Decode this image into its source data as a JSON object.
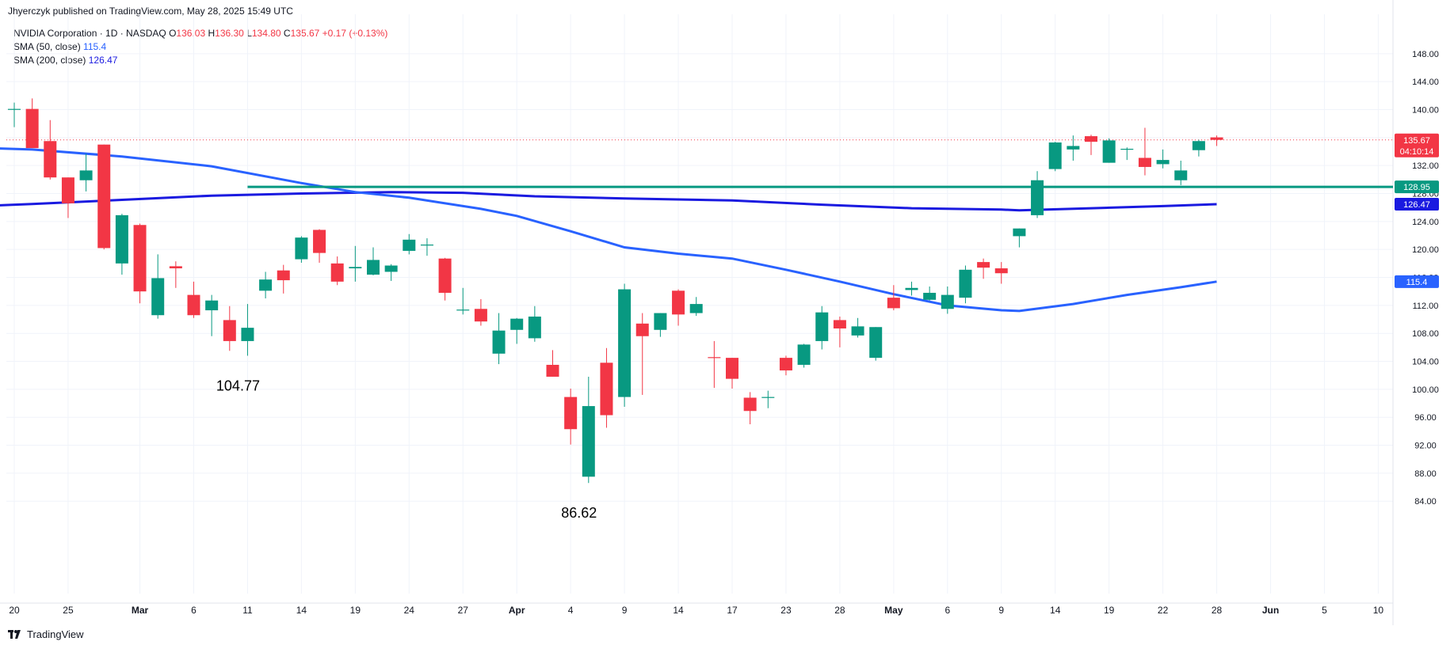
{
  "header": {
    "publisher": "Jhyerczyk published on TradingView.com, May 28, 2025 15:49 UTC"
  },
  "legend": {
    "symbol": "NVIDIA Corporation · 1D · NASDAQ",
    "o_label": "O",
    "o_value": "136.03",
    "h_label": "H",
    "h_value": "136.30",
    "l_label": "L",
    "l_value": "134.80",
    "c_label": "C",
    "c_value": "135.67",
    "change": "+0.17 (+0.13%)",
    "sma50_label": "SMA (50, close)",
    "sma50_value": "115.4",
    "sma200_label": "SMA (200, close)",
    "sma200_value": "126.47"
  },
  "footer": {
    "brand": "TradingView"
  },
  "colors": {
    "up": "#089981",
    "down": "#f23645",
    "sma50": "#2962ff",
    "sma200": "#1a1ae0",
    "hline": "#089981",
    "grid": "#f0f3fa",
    "axis_text": "#131722"
  },
  "chart_data": {
    "type": "candlestick",
    "ylim": [
      82,
      148
    ],
    "y_ticks": [
      "84.00",
      "88.00",
      "92.00",
      "96.00",
      "100.00",
      "104.00",
      "108.00",
      "112.00",
      "116.00",
      "120.00",
      "124.00",
      "128.00",
      "132.00",
      "136.00",
      "140.00",
      "144.00",
      "148.00"
    ],
    "x_ticks": [
      {
        "label": "20",
        "date": "2025-02-20"
      },
      {
        "label": "25",
        "date": "2025-02-25"
      },
      {
        "label": "Mar",
        "date": "2025-03-03"
      },
      {
        "label": "6",
        "date": "2025-03-06"
      },
      {
        "label": "11",
        "date": "2025-03-11"
      },
      {
        "label": "14",
        "date": "2025-03-14"
      },
      {
        "label": "19",
        "date": "2025-03-19"
      },
      {
        "label": "24",
        "date": "2025-03-24"
      },
      {
        "label": "27",
        "date": "2025-03-27"
      },
      {
        "label": "Apr",
        "date": "2025-04-01"
      },
      {
        "label": "4",
        "date": "2025-04-04"
      },
      {
        "label": "9",
        "date": "2025-04-09"
      },
      {
        "label": "14",
        "date": "2025-04-14"
      },
      {
        "label": "17",
        "date": "2025-04-17"
      },
      {
        "label": "23",
        "date": "2025-04-23"
      },
      {
        "label": "28",
        "date": "2025-04-28"
      },
      {
        "label": "May",
        "date": "2025-05-01"
      },
      {
        "label": "6",
        "date": "2025-05-06"
      },
      {
        "label": "9",
        "date": "2025-05-09"
      },
      {
        "label": "14",
        "date": "2025-05-14"
      },
      {
        "label": "19",
        "date": "2025-05-19"
      },
      {
        "label": "22",
        "date": "2025-05-22"
      },
      {
        "label": "28",
        "date": "2025-05-28"
      },
      {
        "label": "Jun",
        "date": "2025-06-02"
      },
      {
        "label": "5",
        "date": "2025-06-05"
      },
      {
        "label": "10",
        "date": "2025-06-10"
      }
    ],
    "candles": [
      {
        "date": "2025-02-20",
        "o": 140.0,
        "h": 141.0,
        "l": 137.5,
        "c": 140.1
      },
      {
        "date": "2025-02-21",
        "o": 140.1,
        "h": 141.6,
        "l": 134.8,
        "c": 134.5
      },
      {
        "date": "2025-02-24",
        "o": 135.5,
        "h": 138.5,
        "l": 130.0,
        "c": 130.3
      },
      {
        "date": "2025-02-25",
        "o": 130.3,
        "h": 130.3,
        "l": 124.5,
        "c": 126.6
      },
      {
        "date": "2025-02-26",
        "o": 129.9,
        "h": 133.7,
        "l": 128.3,
        "c": 131.3
      },
      {
        "date": "2025-02-27",
        "o": 135.0,
        "h": 135.0,
        "l": 120.0,
        "c": 120.2
      },
      {
        "date": "2025-02-28",
        "o": 118.0,
        "h": 125.1,
        "l": 116.4,
        "c": 124.9
      },
      {
        "date": "2025-03-03",
        "o": 123.5,
        "h": 123.7,
        "l": 112.3,
        "c": 114.0
      },
      {
        "date": "2025-03-04",
        "o": 110.6,
        "h": 119.3,
        "l": 110.1,
        "c": 115.9
      },
      {
        "date": "2025-03-05",
        "o": 117.6,
        "h": 118.3,
        "l": 114.5,
        "c": 117.3
      },
      {
        "date": "2025-03-06",
        "o": 113.5,
        "h": 115.4,
        "l": 110.2,
        "c": 110.6
      },
      {
        "date": "2025-03-07",
        "o": 111.3,
        "h": 113.5,
        "l": 107.6,
        "c": 112.7
      },
      {
        "date": "2025-03-10",
        "o": 109.9,
        "h": 111.9,
        "l": 105.5,
        "c": 106.9
      },
      {
        "date": "2025-03-11",
        "o": 106.9,
        "h": 112.2,
        "l": 104.8,
        "c": 108.8
      },
      {
        "date": "2025-03-12",
        "o": 114.1,
        "h": 116.8,
        "l": 113.0,
        "c": 115.7
      },
      {
        "date": "2025-03-13",
        "o": 117.0,
        "h": 117.8,
        "l": 113.7,
        "c": 115.6
      },
      {
        "date": "2025-03-14",
        "o": 118.6,
        "h": 121.9,
        "l": 118.1,
        "c": 121.7
      },
      {
        "date": "2025-03-17",
        "o": 122.8,
        "h": 122.9,
        "l": 118.1,
        "c": 119.5
      },
      {
        "date": "2025-03-18",
        "o": 118.0,
        "h": 119.0,
        "l": 114.9,
        "c": 115.4
      },
      {
        "date": "2025-03-19",
        "o": 117.3,
        "h": 120.5,
        "l": 115.4,
        "c": 117.5
      },
      {
        "date": "2025-03-20",
        "o": 116.4,
        "h": 120.3,
        "l": 116.3,
        "c": 118.5
      },
      {
        "date": "2025-03-21",
        "o": 116.8,
        "h": 117.9,
        "l": 115.5,
        "c": 117.7
      },
      {
        "date": "2025-03-24",
        "o": 119.8,
        "h": 122.2,
        "l": 119.3,
        "c": 121.4
      },
      {
        "date": "2025-03-25",
        "o": 120.6,
        "h": 121.6,
        "l": 119.1,
        "c": 120.7
      },
      {
        "date": "2025-03-26",
        "o": 118.7,
        "h": 118.8,
        "l": 112.7,
        "c": 113.8
      },
      {
        "date": "2025-03-27",
        "o": 111.3,
        "h": 114.5,
        "l": 110.7,
        "c": 111.4
      },
      {
        "date": "2025-03-28",
        "o": 111.5,
        "h": 112.9,
        "l": 109.1,
        "c": 109.7
      },
      {
        "date": "2025-03-31",
        "o": 105.1,
        "h": 110.9,
        "l": 103.6,
        "c": 108.4
      },
      {
        "date": "2025-04-01",
        "o": 108.5,
        "h": 110.2,
        "l": 106.5,
        "c": 110.1
      },
      {
        "date": "2025-04-02",
        "o": 107.3,
        "h": 111.9,
        "l": 106.8,
        "c": 110.4
      },
      {
        "date": "2025-04-03",
        "o": 103.5,
        "h": 105.6,
        "l": 101.8,
        "c": 101.8
      },
      {
        "date": "2025-04-04",
        "o": 98.9,
        "h": 100.1,
        "l": 92.1,
        "c": 94.3
      },
      {
        "date": "2025-04-07",
        "o": 87.5,
        "h": 101.8,
        "l": 86.6,
        "c": 97.6
      },
      {
        "date": "2025-04-08",
        "o": 103.8,
        "h": 105.9,
        "l": 94.5,
        "c": 96.3
      },
      {
        "date": "2025-04-09",
        "o": 98.9,
        "h": 115.1,
        "l": 97.5,
        "c": 114.3
      },
      {
        "date": "2025-04-10",
        "o": 109.4,
        "h": 110.9,
        "l": 99.2,
        "c": 107.6
      },
      {
        "date": "2025-04-11",
        "o": 108.5,
        "h": 110.9,
        "l": 107.5,
        "c": 110.9
      },
      {
        "date": "2025-04-14",
        "o": 114.1,
        "h": 114.3,
        "l": 109.1,
        "c": 110.7
      },
      {
        "date": "2025-04-15",
        "o": 110.9,
        "h": 113.2,
        "l": 110.5,
        "c": 112.2
      },
      {
        "date": "2025-04-16",
        "o": 104.6,
        "h": 106.9,
        "l": 100.2,
        "c": 104.5
      },
      {
        "date": "2025-04-17",
        "o": 104.5,
        "h": 104.5,
        "l": 100.1,
        "c": 101.5
      },
      {
        "date": "2025-04-21",
        "o": 98.8,
        "h": 99.6,
        "l": 95.0,
        "c": 96.9
      },
      {
        "date": "2025-04-22",
        "o": 98.8,
        "h": 99.8,
        "l": 97.3,
        "c": 98.9
      },
      {
        "date": "2025-04-23",
        "o": 104.5,
        "h": 104.8,
        "l": 102.0,
        "c": 102.7
      },
      {
        "date": "2025-04-24",
        "o": 103.5,
        "h": 106.5,
        "l": 103.1,
        "c": 106.4
      },
      {
        "date": "2025-04-25",
        "o": 106.9,
        "h": 111.9,
        "l": 105.7,
        "c": 111.0
      },
      {
        "date": "2025-04-28",
        "o": 109.9,
        "h": 110.4,
        "l": 106.0,
        "c": 108.7
      },
      {
        "date": "2025-04-29",
        "o": 107.7,
        "h": 110.2,
        "l": 107.4,
        "c": 109.0
      },
      {
        "date": "2025-04-30",
        "o": 104.5,
        "h": 108.9,
        "l": 104.1,
        "c": 108.9
      },
      {
        "date": "2025-05-01",
        "o": 113.1,
        "h": 114.9,
        "l": 111.3,
        "c": 111.6
      },
      {
        "date": "2025-05-02",
        "o": 114.2,
        "h": 115.4,
        "l": 113.4,
        "c": 114.5
      },
      {
        "date": "2025-05-05",
        "o": 112.8,
        "h": 114.7,
        "l": 112.7,
        "c": 113.8
      },
      {
        "date": "2025-05-06",
        "o": 111.5,
        "h": 114.7,
        "l": 110.8,
        "c": 113.5
      },
      {
        "date": "2025-05-07",
        "o": 113.1,
        "h": 117.7,
        "l": 112.3,
        "c": 117.1
      },
      {
        "date": "2025-05-08",
        "o": 118.2,
        "h": 118.7,
        "l": 115.8,
        "c": 117.4
      },
      {
        "date": "2025-05-09",
        "o": 117.3,
        "h": 118.2,
        "l": 115.1,
        "c": 116.6
      },
      {
        "date": "2025-05-12",
        "o": 121.9,
        "h": 123.0,
        "l": 120.3,
        "c": 123.0
      },
      {
        "date": "2025-05-13",
        "o": 124.9,
        "h": 131.2,
        "l": 124.5,
        "c": 129.9
      },
      {
        "date": "2025-05-14",
        "o": 131.5,
        "h": 135.4,
        "l": 131.2,
        "c": 135.3
      },
      {
        "date": "2025-05-15",
        "o": 134.3,
        "h": 136.3,
        "l": 132.7,
        "c": 134.8
      },
      {
        "date": "2025-05-16",
        "o": 136.2,
        "h": 136.4,
        "l": 133.5,
        "c": 135.4
      },
      {
        "date": "2025-05-19",
        "o": 132.4,
        "h": 135.9,
        "l": 132.4,
        "c": 135.6
      },
      {
        "date": "2025-05-20",
        "o": 134.3,
        "h": 134.6,
        "l": 132.8,
        "c": 134.4
      },
      {
        "date": "2025-05-21",
        "o": 133.1,
        "h": 137.4,
        "l": 130.6,
        "c": 131.8
      },
      {
        "date": "2025-05-22",
        "o": 132.2,
        "h": 134.3,
        "l": 131.6,
        "c": 132.8
      },
      {
        "date": "2025-05-23",
        "o": 129.9,
        "h": 132.7,
        "l": 129.2,
        "c": 131.3
      },
      {
        "date": "2025-05-27",
        "o": 134.2,
        "h": 135.7,
        "l": 133.3,
        "c": 135.5
      },
      {
        "date": "2025-05-28",
        "o": 136.03,
        "h": 136.3,
        "l": 134.8,
        "c": 135.67
      }
    ],
    "sma50": [
      {
        "date": "2025-02-14",
        "v": 134.7
      },
      {
        "date": "2025-02-21",
        "v": 134.3
      },
      {
        "date": "2025-02-28",
        "v": 133.3
      },
      {
        "date": "2025-03-07",
        "v": 131.9
      },
      {
        "date": "2025-03-14",
        "v": 129.5
      },
      {
        "date": "2025-03-19",
        "v": 128.2
      },
      {
        "date": "2025-03-24",
        "v": 127.4
      },
      {
        "date": "2025-03-28",
        "v": 125.8
      },
      {
        "date": "2025-04-01",
        "v": 124.8
      },
      {
        "date": "2025-04-04",
        "v": 122.6
      },
      {
        "date": "2025-04-09",
        "v": 120.3
      },
      {
        "date": "2025-04-14",
        "v": 119.4
      },
      {
        "date": "2025-04-17",
        "v": 118.7
      },
      {
        "date": "2025-04-23",
        "v": 117.1
      },
      {
        "date": "2025-04-28",
        "v": 115.4
      },
      {
        "date": "2025-05-01",
        "v": 113.6
      },
      {
        "date": "2025-05-06",
        "v": 112.0
      },
      {
        "date": "2025-05-09",
        "v": 111.3
      },
      {
        "date": "2025-05-12",
        "v": 111.2
      },
      {
        "date": "2025-05-15",
        "v": 112.2
      },
      {
        "date": "2025-05-20",
        "v": 113.5
      },
      {
        "date": "2025-05-23",
        "v": 114.6
      },
      {
        "date": "2025-05-28",
        "v": 115.4
      }
    ],
    "sma200": [
      {
        "date": "2025-02-14",
        "v": 126.0
      },
      {
        "date": "2025-02-21",
        "v": 126.5
      },
      {
        "date": "2025-02-28",
        "v": 127.1
      },
      {
        "date": "2025-03-07",
        "v": 127.7
      },
      {
        "date": "2025-03-14",
        "v": 128.0
      },
      {
        "date": "2025-03-21",
        "v": 128.2
      },
      {
        "date": "2025-03-27",
        "v": 128.1
      },
      {
        "date": "2025-04-02",
        "v": 127.6
      },
      {
        "date": "2025-04-09",
        "v": 127.3
      },
      {
        "date": "2025-04-17",
        "v": 127.0
      },
      {
        "date": "2025-04-25",
        "v": 126.4
      },
      {
        "date": "2025-05-02",
        "v": 125.9
      },
      {
        "date": "2025-05-09",
        "v": 125.7
      },
      {
        "date": "2025-05-12",
        "v": 125.6
      },
      {
        "date": "2025-05-16",
        "v": 125.9
      },
      {
        "date": "2025-05-22",
        "v": 126.2
      },
      {
        "date": "2025-05-28",
        "v": 126.47
      }
    ],
    "horizontal_line": {
      "value": 128.95,
      "from_date": "2025-03-11"
    },
    "annotations": [
      {
        "text": "104.77",
        "date": "2025-03-11",
        "y": 104.77
      },
      {
        "text": "86.62",
        "date": "2025-04-07",
        "y": 86.62
      }
    ],
    "price_labels": [
      {
        "text": "135.67",
        "sub": "04:10:14",
        "y": 135.67,
        "color": "#f23645"
      },
      {
        "text": "128.95",
        "y": 128.95,
        "color": "#089981"
      },
      {
        "text": "126.47",
        "y": 126.47,
        "color": "#1a1ae0"
      },
      {
        "text": "115.4",
        "y": 115.4,
        "color": "#2962ff"
      }
    ]
  }
}
